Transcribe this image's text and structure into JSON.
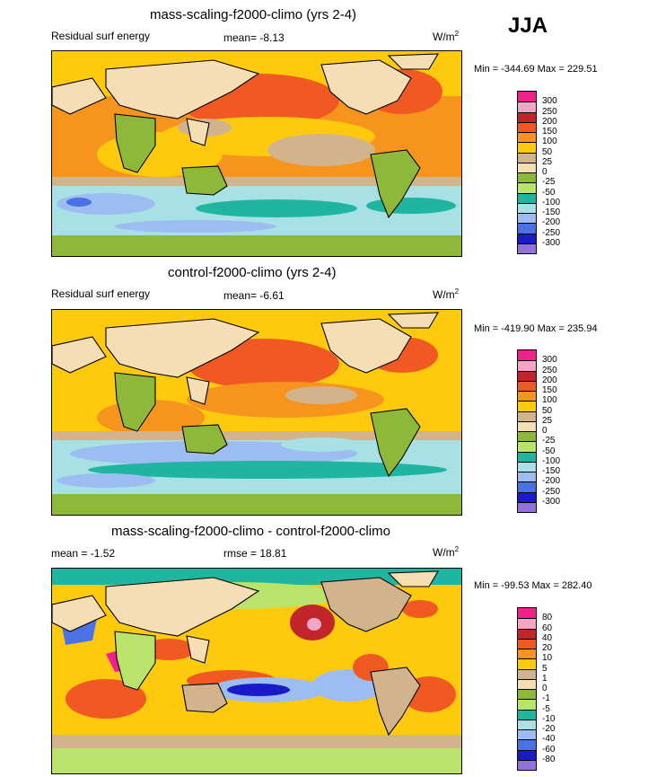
{
  "season": "JJA",
  "panels": [
    {
      "title": "mass-scaling-f2000-climo (yrs 2-4)",
      "left_label": "Residual surf energy",
      "mid_label": "mean=  -8.13",
      "unit": "W/m",
      "unit_sup": "2",
      "minmax": "Min = -344.69 Max = 229.51",
      "levels": [
        "300",
        "250",
        "200",
        "150",
        "100",
        "50",
        "25",
        "0",
        "-25",
        "-50",
        "-100",
        "-150",
        "-200",
        "-250",
        "-300"
      ],
      "colors": [
        "#f0218c",
        "#f4a6c6",
        "#c1262a",
        "#f05a22",
        "#f7941d",
        "#ffc90e",
        "#d2b48c",
        "#f5deb3",
        "#8db83a",
        "#b9e36a",
        "#1fb5a0",
        "#a7e0e5",
        "#9dbcf2",
        "#4a72e5",
        "#1a1ac8",
        "#9370db"
      ],
      "min": -344.69,
      "max": 229.51
    },
    {
      "title": "control-f2000-climo (yrs 2-4)",
      "left_label": "Residual surf energy",
      "mid_label": "mean=  -6.61",
      "unit": "W/m",
      "unit_sup": "2",
      "minmax": "Min = -419.90 Max = 235.94",
      "levels": [
        "300",
        "250",
        "200",
        "150",
        "100",
        "50",
        "25",
        "0",
        "-25",
        "-50",
        "-100",
        "-150",
        "-200",
        "-250",
        "-300"
      ],
      "colors": [
        "#f0218c",
        "#f4a6c6",
        "#c1262a",
        "#f05a22",
        "#f7941d",
        "#ffc90e",
        "#d2b48c",
        "#f5deb3",
        "#8db83a",
        "#b9e36a",
        "#1fb5a0",
        "#a7e0e5",
        "#9dbcf2",
        "#4a72e5",
        "#1a1ac8",
        "#9370db"
      ],
      "min": -419.9,
      "max": 235.94
    },
    {
      "title": "mass-scaling-f2000-climo - control-f2000-climo",
      "left_label": "mean =  -1.52",
      "mid_label": "rmse =  18.81",
      "unit": "W/m",
      "unit_sup": "2",
      "minmax": "Min = -99.53 Max = 282.40",
      "levels": [
        "80",
        "60",
        "40",
        "20",
        "10",
        "5",
        "1",
        "0",
        "-1",
        "-5",
        "-10",
        "-20",
        "-40",
        "-60",
        "-80"
      ],
      "colors": [
        "#f0218c",
        "#f4a6c6",
        "#c1262a",
        "#f05a22",
        "#f7941d",
        "#ffc90e",
        "#d2b48c",
        "#f5deb3",
        "#8db83a",
        "#b9e36a",
        "#1fb5a0",
        "#a7e0e5",
        "#9dbcf2",
        "#4a72e5",
        "#1a1ac8",
        "#9370db"
      ],
      "min": -99.53,
      "max": 282.4
    }
  ],
  "chart_data": [
    {
      "type": "heatmap",
      "title": "mass-scaling-f2000-climo (yrs 2-4)",
      "variable": "Residual surf energy",
      "season": "JJA",
      "units": "W/m2",
      "mean": -8.13,
      "min": -344.69,
      "max": 229.51,
      "contour_levels": [
        300,
        250,
        200,
        150,
        100,
        50,
        25,
        0,
        -25,
        -50,
        -100,
        -150,
        -200,
        -250,
        -300
      ]
    },
    {
      "type": "heatmap",
      "title": "control-f2000-climo (yrs 2-4)",
      "variable": "Residual surf energy",
      "season": "JJA",
      "units": "W/m2",
      "mean": -6.61,
      "min": -419.9,
      "max": 235.94,
      "contour_levels": [
        300,
        250,
        200,
        150,
        100,
        50,
        25,
        0,
        -25,
        -50,
        -100,
        -150,
        -200,
        -250,
        -300
      ]
    },
    {
      "type": "heatmap",
      "title": "mass-scaling-f2000-climo - control-f2000-climo",
      "season": "JJA",
      "units": "W/m2",
      "mean": -1.52,
      "rmse": 18.81,
      "min": -99.53,
      "max": 282.4,
      "contour_levels": [
        80,
        60,
        40,
        20,
        10,
        5,
        1,
        0,
        -1,
        -5,
        -10,
        -20,
        -40,
        -60,
        -80
      ]
    }
  ]
}
